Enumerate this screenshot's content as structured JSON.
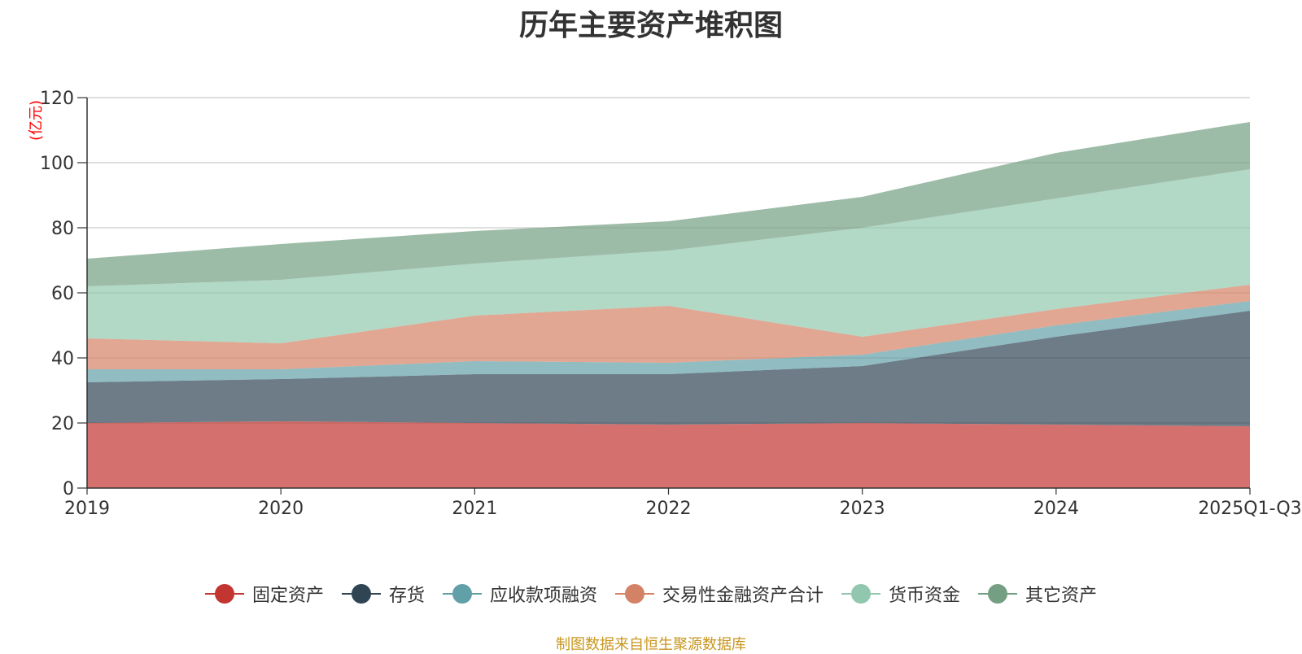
{
  "chart_data": {
    "type": "area",
    "stacked": true,
    "title": "历年主要资产堆积图",
    "ylabel": "(亿元)",
    "xlabel": "",
    "categories": [
      "2019",
      "2020",
      "2021",
      "2022",
      "2023",
      "2024",
      "2025Q1-Q3"
    ],
    "ylim": [
      0,
      120
    ],
    "yticks": [
      0,
      20,
      40,
      60,
      80,
      100,
      120
    ],
    "grid": true,
    "legend_position": "bottom",
    "series": [
      {
        "name": "固定资产",
        "color": "#c23531",
        "values": [
          20.0,
          20.5,
          20.0,
          19.5,
          20.0,
          19.5,
          19.0
        ]
      },
      {
        "name": "存货",
        "color": "#2f4554",
        "values": [
          12.5,
          13.0,
          15.0,
          15.5,
          17.5,
          27.0,
          35.5
        ]
      },
      {
        "name": "应收款项融资",
        "color": "#61a0a8",
        "values": [
          4.0,
          3.0,
          4.0,
          3.5,
          3.5,
          3.5,
          3.0
        ]
      },
      {
        "name": "交易性金融资产合计",
        "color": "#d48265",
        "values": [
          9.5,
          8.0,
          14.0,
          17.5,
          5.5,
          5.0,
          5.0
        ]
      },
      {
        "name": "货币资金",
        "color": "#91c7ae",
        "values": [
          16.0,
          19.5,
          16.0,
          17.0,
          33.5,
          34.0,
          35.5
        ]
      },
      {
        "name": "其它资产",
        "color": "#749f83",
        "values": [
          8.5,
          11.0,
          10.0,
          9.0,
          9.5,
          14.0,
          14.5
        ]
      }
    ]
  },
  "footer": {
    "source": "制图数据来自恒生聚源数据库"
  }
}
